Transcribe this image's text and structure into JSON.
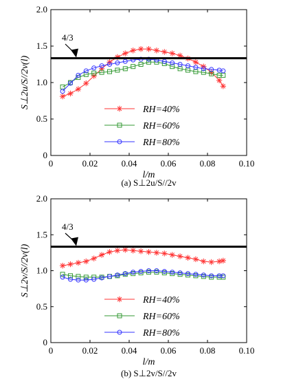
{
  "chart_data": [
    {
      "type": "line",
      "caption": "(a) S⊥2u/S//2v",
      "xlabel": "l/m",
      "ylabel": "S⊥2u/S//2v(l)",
      "xlim": [
        0,
        0.1
      ],
      "ylim": [
        0,
        2.0
      ],
      "xticks": [
        "0",
        "0.02",
        "0.04",
        "0.06",
        "0.08",
        "0.10"
      ],
      "yticks": [
        "0",
        "0.5",
        "1.0",
        "1.5",
        "2.0"
      ],
      "reference": {
        "value": 1.3333,
        "label": "4/3"
      },
      "legend_position": "lower-center",
      "series": [
        {
          "name": "RH=40%",
          "marker": "star",
          "color": "#ff3333",
          "x": [
            0.006,
            0.01,
            0.014,
            0.018,
            0.022,
            0.026,
            0.03,
            0.034,
            0.038,
            0.042,
            0.046,
            0.05,
            0.054,
            0.058,
            0.062,
            0.066,
            0.07,
            0.074,
            0.078,
            0.082,
            0.086,
            0.088
          ],
          "y": [
            0.81,
            0.85,
            0.91,
            0.99,
            1.09,
            1.19,
            1.28,
            1.35,
            1.4,
            1.44,
            1.46,
            1.46,
            1.44,
            1.42,
            1.4,
            1.37,
            1.33,
            1.28,
            1.22,
            1.14,
            1.03,
            0.95
          ]
        },
        {
          "name": "RH=60%",
          "marker": "square",
          "color": "#339933",
          "x": [
            0.006,
            0.01,
            0.014,
            0.018,
            0.022,
            0.026,
            0.03,
            0.034,
            0.038,
            0.042,
            0.046,
            0.05,
            0.054,
            0.058,
            0.062,
            0.066,
            0.07,
            0.074,
            0.078,
            0.082,
            0.086,
            0.088
          ],
          "y": [
            0.94,
            1.0,
            1.07,
            1.11,
            1.13,
            1.14,
            1.15,
            1.17,
            1.19,
            1.22,
            1.25,
            1.28,
            1.28,
            1.26,
            1.22,
            1.19,
            1.17,
            1.15,
            1.14,
            1.12,
            1.1,
            1.1
          ]
        },
        {
          "name": "RH=80%",
          "marker": "circle",
          "color": "#3333ff",
          "x": [
            0.006,
            0.01,
            0.014,
            0.018,
            0.022,
            0.026,
            0.03,
            0.034,
            0.038,
            0.042,
            0.046,
            0.05,
            0.054,
            0.058,
            0.062,
            0.066,
            0.07,
            0.074,
            0.078,
            0.082,
            0.086,
            0.088
          ],
          "y": [
            0.88,
            0.99,
            1.1,
            1.16,
            1.2,
            1.23,
            1.25,
            1.27,
            1.29,
            1.31,
            1.32,
            1.32,
            1.31,
            1.29,
            1.27,
            1.25,
            1.23,
            1.21,
            1.19,
            1.18,
            1.17,
            1.16
          ]
        }
      ]
    },
    {
      "type": "line",
      "caption": "(b) S⊥2v/S//2v",
      "xlabel": "l/m",
      "ylabel": "S⊥2v/S//2v(l)",
      "xlim": [
        0,
        0.1
      ],
      "ylim": [
        0,
        2.0
      ],
      "xticks": [
        "0",
        "0.02",
        "0.04",
        "0.06",
        "0.08",
        "0.10"
      ],
      "yticks": [
        "0",
        "0.5",
        "1.0",
        "1.5",
        "2.0"
      ],
      "reference": {
        "value": 1.3333,
        "label": "4/3"
      },
      "legend_position": "lower-center",
      "series": [
        {
          "name": "RH=40%",
          "marker": "star",
          "color": "#ff3333",
          "x": [
            0.006,
            0.01,
            0.014,
            0.018,
            0.022,
            0.026,
            0.03,
            0.034,
            0.038,
            0.042,
            0.046,
            0.05,
            0.054,
            0.058,
            0.062,
            0.066,
            0.07,
            0.074,
            0.078,
            0.082,
            0.086,
            0.088
          ],
          "y": [
            1.07,
            1.09,
            1.11,
            1.13,
            1.17,
            1.22,
            1.26,
            1.28,
            1.29,
            1.28,
            1.27,
            1.26,
            1.25,
            1.24,
            1.22,
            1.2,
            1.18,
            1.16,
            1.13,
            1.12,
            1.13,
            1.14
          ]
        },
        {
          "name": "RH=60%",
          "marker": "square",
          "color": "#339933",
          "x": [
            0.006,
            0.01,
            0.014,
            0.018,
            0.022,
            0.026,
            0.03,
            0.034,
            0.038,
            0.042,
            0.046,
            0.05,
            0.054,
            0.058,
            0.062,
            0.066,
            0.07,
            0.074,
            0.078,
            0.082,
            0.086,
            0.088
          ],
          "y": [
            0.95,
            0.93,
            0.92,
            0.91,
            0.91,
            0.91,
            0.92,
            0.93,
            0.95,
            0.96,
            0.97,
            0.98,
            0.98,
            0.97,
            0.96,
            0.95,
            0.94,
            0.93,
            0.92,
            0.91,
            0.91,
            0.91
          ]
        },
        {
          "name": "RH=80%",
          "marker": "circle",
          "color": "#3333ff",
          "x": [
            0.006,
            0.01,
            0.014,
            0.018,
            0.022,
            0.026,
            0.03,
            0.034,
            0.038,
            0.042,
            0.046,
            0.05,
            0.054,
            0.058,
            0.062,
            0.066,
            0.07,
            0.074,
            0.078,
            0.082,
            0.086,
            0.088
          ],
          "y": [
            0.91,
            0.88,
            0.87,
            0.87,
            0.88,
            0.9,
            0.92,
            0.94,
            0.96,
            0.98,
            0.99,
            1.0,
            1.0,
            0.99,
            0.98,
            0.97,
            0.96,
            0.95,
            0.94,
            0.93,
            0.93,
            0.93
          ]
        }
      ]
    }
  ]
}
